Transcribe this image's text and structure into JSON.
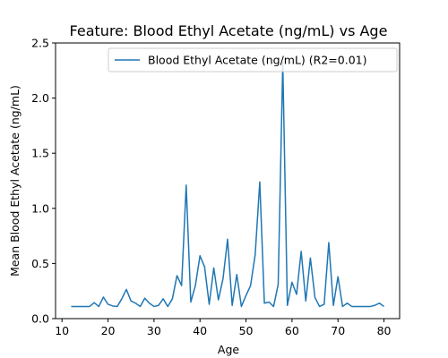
{
  "chart_data": {
    "type": "line",
    "title": "Feature: Blood Ethyl Acetate (ng/mL) vs Age",
    "xlabel": "Age",
    "ylabel": "Mean Blood Ethyl Acetate (ng/mL)",
    "xlim": [
      8.6,
      83.4
    ],
    "ylim": [
      0,
      2.5
    ],
    "xticks": [
      10,
      20,
      30,
      40,
      50,
      60,
      70,
      80
    ],
    "yticks": [
      0.0,
      0.5,
      1.0,
      1.5,
      2.0,
      2.5
    ],
    "xtick_labels": [
      "10",
      "20",
      "30",
      "40",
      "50",
      "60",
      "70",
      "80"
    ],
    "ytick_labels": [
      "0.0",
      "0.5",
      "1.0",
      "1.5",
      "2.0",
      "2.5"
    ],
    "grid": false,
    "legend_position": "top-right",
    "series": [
      {
        "name": "Blood Ethyl Acetate (ng/mL) (R2=0.01)",
        "color": "#1f77b4",
        "x": [
          12,
          13,
          14,
          15,
          16,
          17,
          18,
          19,
          20,
          21,
          22,
          23,
          24,
          25,
          26,
          27,
          28,
          29,
          30,
          31,
          32,
          33,
          34,
          35,
          36,
          37,
          38,
          39,
          40,
          41,
          42,
          43,
          44,
          45,
          46,
          47,
          48,
          49,
          50,
          51,
          52,
          53,
          54,
          55,
          56,
          57,
          58,
          59,
          60,
          61,
          62,
          63,
          64,
          65,
          66,
          67,
          68,
          69,
          70,
          71,
          72,
          73,
          74,
          75,
          76,
          77,
          78,
          79,
          80
        ],
        "y": [
          0.11,
          0.11,
          0.11,
          0.11,
          0.11,
          0.145,
          0.11,
          0.195,
          0.13,
          0.115,
          0.11,
          0.18,
          0.265,
          0.16,
          0.14,
          0.11,
          0.185,
          0.14,
          0.11,
          0.12,
          0.18,
          0.11,
          0.18,
          0.39,
          0.3,
          1.21,
          0.15,
          0.3,
          0.57,
          0.47,
          0.13,
          0.46,
          0.17,
          0.36,
          0.72,
          0.12,
          0.4,
          0.11,
          0.21,
          0.3,
          0.58,
          1.24,
          0.14,
          0.15,
          0.11,
          0.31,
          2.32,
          0.12,
          0.33,
          0.22,
          0.61,
          0.16,
          0.55,
          0.19,
          0.11,
          0.13,
          0.69,
          0.12,
          0.38,
          0.11,
          0.14,
          0.11,
          0.11,
          0.11,
          0.11,
          0.11,
          0.12,
          0.14,
          0.11
        ]
      }
    ]
  }
}
